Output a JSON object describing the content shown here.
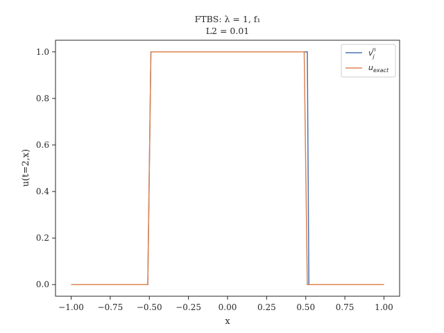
{
  "chart_data": {
    "type": "line",
    "title": "FTBS: λ = 1, f₁",
    "subtitle": "L2 = 0.01",
    "xlabel": "x",
    "ylabel": "u(t=2,x)",
    "xlim": [
      -1.1,
      1.1
    ],
    "ylim": [
      -0.05,
      1.05
    ],
    "xticks": [
      -1.0,
      -0.75,
      -0.5,
      -0.25,
      0.0,
      0.25,
      0.5,
      0.75,
      1.0
    ],
    "xtick_labels": [
      "−1.00",
      "−0.75",
      "−0.50",
      "−0.25",
      "0.00",
      "0.25",
      "0.50",
      "0.75",
      "1.00"
    ],
    "yticks": [
      0.0,
      0.2,
      0.4,
      0.6,
      0.8,
      1.0
    ],
    "ytick_labels": [
      "0.0",
      "0.2",
      "0.4",
      "0.6",
      "0.8",
      "1.0"
    ],
    "grid": false,
    "legend_position": "top-right",
    "series": [
      {
        "name": "v_j^n",
        "color": "#4c72b0",
        "x": [
          -1.0,
          -0.51,
          -0.49,
          0.51,
          0.52,
          1.0
        ],
        "y": [
          0.0,
          0.0,
          1.0,
          1.0,
          0.0,
          0.0
        ]
      },
      {
        "name": "u_exact",
        "color": "#dd8452",
        "x": [
          -1.0,
          -0.51,
          -0.49,
          0.49,
          0.51,
          1.0
        ],
        "y": [
          0.0,
          0.0,
          1.0,
          1.0,
          0.0,
          0.0
        ]
      }
    ]
  }
}
